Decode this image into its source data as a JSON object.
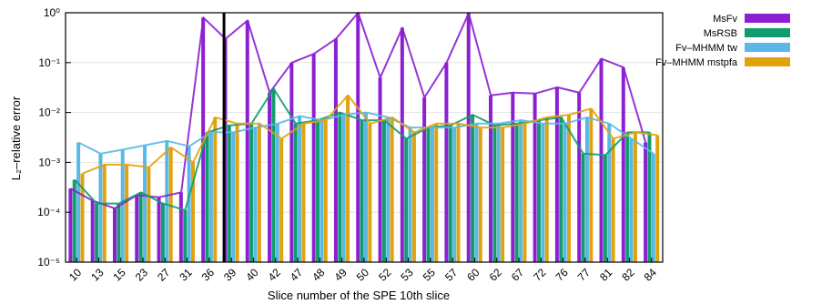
{
  "chart_data": {
    "type": "bar",
    "xlabel": "Slice number of the SPE 10th slice",
    "ylabel": "L₂–relative error",
    "y_scale": "log",
    "ylim": [
      1e-05,
      1
    ],
    "y_ticks": [
      {
        "value": 1e-05,
        "label": "10⁻⁵"
      },
      {
        "value": 0.0001,
        "label": "10⁻⁴"
      },
      {
        "value": 0.001,
        "label": "10⁻³"
      },
      {
        "value": 0.01,
        "label": "10⁻²"
      },
      {
        "value": 0.1,
        "label": "10⁻¹"
      },
      {
        "value": 1,
        "label": "10⁰"
      }
    ],
    "categories": [
      "10",
      "13",
      "15",
      "23",
      "27",
      "31",
      "36",
      "39",
      "40",
      "42",
      "47",
      "48",
      "49",
      "50",
      "52",
      "53",
      "55",
      "57",
      "60",
      "62",
      "67",
      "72",
      "76",
      "77",
      "81",
      "82",
      "84"
    ],
    "legend_position": "top-right",
    "series": [
      {
        "name": "MsFv",
        "color": "#8b1fd1",
        "values": [
          0.0003,
          0.00017,
          0.00012,
          0.00022,
          0.0002,
          0.00025,
          0.8,
          0.3,
          0.7,
          0.025,
          0.1,
          0.15,
          0.3,
          1.0,
          0.05,
          0.5,
          0.02,
          0.1,
          0.98,
          0.022,
          0.025,
          0.024,
          0.032,
          0.025,
          0.12,
          0.08,
          0.0025
        ]
      },
      {
        "name": "MsRSB",
        "color": "#109c6e",
        "values": [
          0.00045,
          0.00015,
          0.00015,
          0.00025,
          0.00015,
          0.00011,
          0.004,
          0.0055,
          0.006,
          0.03,
          0.006,
          0.007,
          0.01,
          0.007,
          0.007,
          0.003,
          0.005,
          0.0055,
          0.009,
          0.0055,
          0.006,
          0.007,
          0.008,
          0.0015,
          0.0014,
          0.004,
          0.004
        ]
      },
      {
        "name": "Fv–MHMM tw",
        "color": "#5ab8e6",
        "values": [
          0.0025,
          0.0015,
          0.0018,
          0.0022,
          0.0027,
          0.0021,
          0.004,
          0.004,
          0.005,
          0.006,
          0.0085,
          0.007,
          0.009,
          0.01,
          0.008,
          0.005,
          0.005,
          0.005,
          0.006,
          0.006,
          0.007,
          0.006,
          0.006,
          0.008,
          0.006,
          0.003,
          0.0015
        ]
      },
      {
        "name": "Fv–MHMM mstpfa",
        "color": "#e2a20e",
        "values": [
          0.0006,
          0.0009,
          0.0009,
          0.0008,
          0.002,
          0.001,
          0.008,
          0.006,
          0.006,
          0.003,
          0.006,
          0.007,
          0.022,
          0.006,
          0.008,
          0.004,
          0.006,
          0.006,
          0.005,
          0.005,
          0.006,
          0.008,
          0.009,
          0.012,
          0.003,
          0.004,
          0.0035
        ]
      }
    ],
    "highlight_category": "38"
  }
}
